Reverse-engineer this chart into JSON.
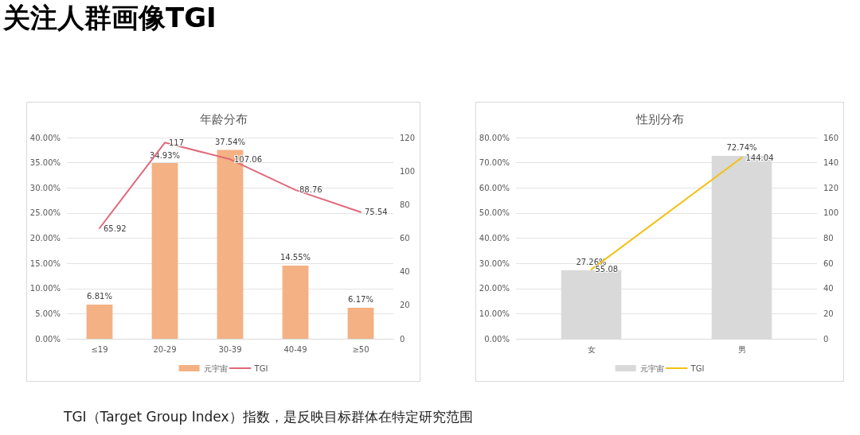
{
  "chart_data": [
    {
      "type": "other",
      "title": "关注人群画像TGI"
    },
    {
      "type": "bar",
      "title": "年龄分布",
      "categories": [
        "≤19",
        "20-29",
        "30-39",
        "40-49",
        "≥50"
      ],
      "series": [
        {
          "name": "元宇宙",
          "type": "bar",
          "color": "#f4b183",
          "values": [
            6.81,
            34.93,
            37.54,
            14.55,
            6.17
          ],
          "value_labels": [
            "6.81%",
            "34.93%",
            "37.54%",
            "14.55%",
            "6.17%"
          ]
        },
        {
          "name": "TGI",
          "type": "line",
          "axis": "y2",
          "color": "#e0697b",
          "values": [
            65.92,
            117,
            107.06,
            88.76,
            75.54
          ],
          "value_labels": [
            "65.92",
            "117",
            "107.06",
            "88.76",
            "75.54"
          ]
        }
      ],
      "ylim": [
        0,
        40
      ],
      "yticks": [
        {
          "value": 0,
          "label": "0.00%"
        },
        {
          "value": 5,
          "label": "5.00%"
        },
        {
          "value": 10,
          "label": "10.00%"
        },
        {
          "value": 15,
          "label": "15.00%"
        },
        {
          "value": 20,
          "label": "20.00%"
        },
        {
          "value": 25,
          "label": "25.00%"
        },
        {
          "value": 30,
          "label": "30.00%"
        },
        {
          "value": 35,
          "label": "35.00%"
        },
        {
          "value": 40,
          "label": "40.00%"
        }
      ],
      "y2lim": [
        0,
        120
      ],
      "y2ticks": [
        0,
        20,
        40,
        60,
        80,
        100,
        120
      ],
      "grid": "y",
      "legend": "bottom",
      "marker": "none"
    },
    {
      "type": "bar",
      "title": "性别分布",
      "categories": [
        "女",
        "男"
      ],
      "series": [
        {
          "name": "元宇宙",
          "type": "bar",
          "color": "#d9d9d9",
          "values": [
            27.26,
            72.74
          ],
          "value_labels": [
            "27.26%",
            "72.74%"
          ]
        },
        {
          "name": "TGI",
          "type": "line",
          "axis": "y2",
          "color": "#f2c012",
          "values": [
            55.08,
            144.04
          ],
          "value_labels": [
            "55.08",
            "144.04"
          ]
        }
      ],
      "ylim": [
        0,
        80
      ],
      "yticks": [
        {
          "value": 0,
          "label": "0.00%"
        },
        {
          "value": 10,
          "label": "10.00%"
        },
        {
          "value": 20,
          "label": "20.00%"
        },
        {
          "value": 30,
          "label": "30.00%"
        },
        {
          "value": 40,
          "label": "40.00%"
        },
        {
          "value": 50,
          "label": "50.00%"
        },
        {
          "value": 60,
          "label": "60.00%"
        },
        {
          "value": 70,
          "label": "70.00%"
        },
        {
          "value": 80,
          "label": "80.00%"
        }
      ],
      "y2lim": [
        0,
        160
      ],
      "y2ticks": [
        0,
        20,
        40,
        60,
        80,
        100,
        120,
        140,
        160
      ],
      "grid": "y",
      "legend": "bottom",
      "marker": "none"
    },
    {
      "type": "other",
      "annotations": [
        "TGI（Target Group Index）指数，是反映目标群体在特定研究范围"
      ]
    }
  ]
}
